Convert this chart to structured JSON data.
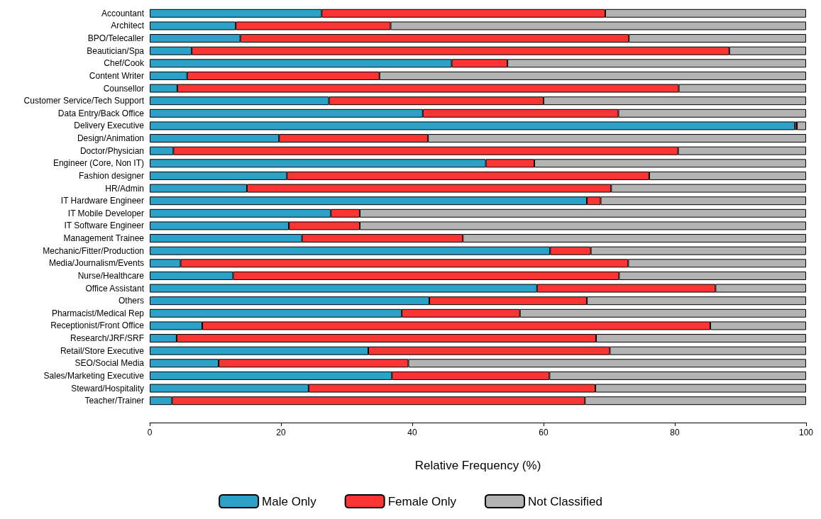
{
  "chart_data": {
    "type": "bar",
    "orientation": "horizontal",
    "stacked": true,
    "xlabel": "Relative Frequency (%)",
    "categories": [
      "Accountant",
      "Architect",
      "BPO/Telecaller",
      "Beautician/Spa",
      "Chef/Cook",
      "Content Writer",
      "Counsellor",
      "Customer Service/Tech Support",
      "Data Entry/Back Office",
      "Delivery Executive",
      "Design/Animation",
      "Doctor/Physician",
      "Engineer (Core, Non IT)",
      "Fashion designer",
      "HR/Admin",
      "IT Hardware Engineer",
      "IT Mobile Developer",
      "IT Software Engineer",
      "Management Trainee",
      "Mechanic/Fitter/Production",
      "Media/Journalism/Events",
      "Nurse/Healthcare",
      "Office Assistant",
      "Others",
      "Pharmacist/Medical Rep",
      "Receptionist/Front Office",
      "Research/JRF/SRF",
      "Retail/Store Executive",
      "SEO/Social Media",
      "Sales/Marketing Executive",
      "Steward/Hospitality",
      "Teacher/Trainer"
    ],
    "series": [
      {
        "name": "Male Only",
        "color": "#2ca2c8",
        "values": [
          26.2,
          13.1,
          13.8,
          6.4,
          46.0,
          5.7,
          4.2,
          27.3,
          41.6,
          98.3,
          19.7,
          3.6,
          51.2,
          20.9,
          14.8,
          66.6,
          27.6,
          21.2,
          23.2,
          61.0,
          4.7,
          12.7,
          59.0,
          42.6,
          38.4,
          8.0,
          4.1,
          33.3,
          10.5,
          36.9,
          24.2,
          3.4
        ]
      },
      {
        "name": "Female Only",
        "color": "#fb3434",
        "values": [
          43.2,
          23.6,
          59.2,
          81.9,
          8.5,
          29.3,
          76.4,
          32.7,
          29.8,
          0.3,
          22.7,
          76.9,
          7.4,
          55.2,
          55.5,
          2.1,
          4.4,
          10.8,
          24.5,
          6.2,
          68.2,
          58.8,
          27.2,
          24.0,
          18.0,
          77.4,
          63.9,
          36.8,
          28.9,
          24.0,
          43.7,
          62.9
        ]
      },
      {
        "name": "Not Classified",
        "color": "#b3b3b3",
        "values": [
          30.6,
          63.3,
          27.0,
          11.7,
          45.5,
          65.0,
          19.4,
          40.0,
          28.6,
          1.4,
          57.6,
          19.5,
          41.4,
          23.9,
          29.7,
          31.3,
          68.0,
          68.0,
          52.3,
          32.8,
          27.1,
          28.5,
          13.8,
          33.4,
          43.6,
          14.6,
          32.0,
          29.9,
          60.6,
          39.1,
          32.1,
          33.7
        ]
      }
    ],
    "xlim": [
      0,
      100
    ],
    "xticks": [
      0,
      20,
      40,
      60,
      80,
      100
    ],
    "grid": false,
    "legend": "bottom"
  }
}
